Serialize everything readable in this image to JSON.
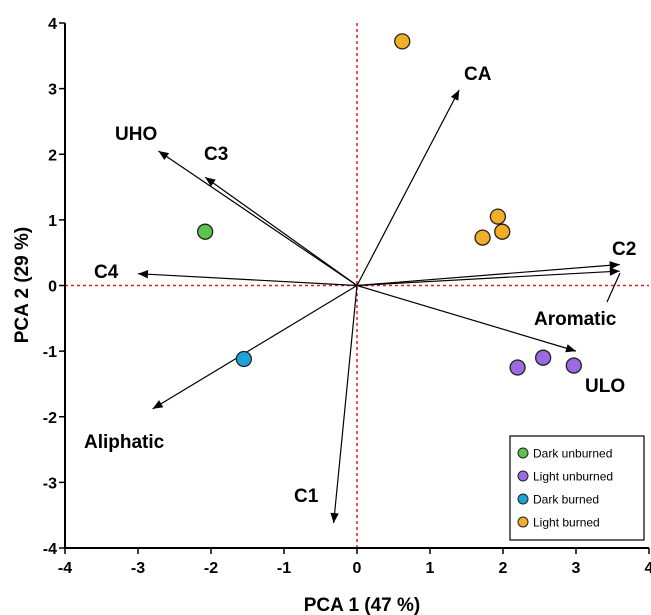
{
  "chart_data": {
    "type": "scatter",
    "xlabel": "PCA 1 (47 %)",
    "ylabel": "PCA 2 (29 %)",
    "xlim": [
      -4,
      4
    ],
    "ylim": [
      -4,
      4
    ],
    "x_ticks": [
      "-4",
      "-3",
      "-2",
      "-1",
      "0",
      "1",
      "2",
      "3",
      "4"
    ],
    "y_ticks": [
      "4",
      "3",
      "2",
      "1",
      "0",
      "-1",
      "-2",
      "-3",
      "-4"
    ],
    "reference_lines": {
      "x": 0,
      "y": 0,
      "color": "#e02020"
    },
    "legend_position": "bottom-right",
    "series": [
      {
        "name": "Dark unburned",
        "color": "#5cc44a",
        "points": [
          {
            "x": -2.08,
            "y": 0.82
          }
        ]
      },
      {
        "name": "Light unburned",
        "color": "#9b6ae0",
        "points": [
          {
            "x": 2.2,
            "y": -1.25
          },
          {
            "x": 2.55,
            "y": -1.1
          },
          {
            "x": 2.97,
            "y": -1.22
          }
        ]
      },
      {
        "name": "Dark burned",
        "color": "#1ea3d8",
        "points": [
          {
            "x": -1.55,
            "y": -1.12
          }
        ]
      },
      {
        "name": "Light burned",
        "color": "#f2ae28",
        "points": [
          {
            "x": 0.62,
            "y": 3.72
          },
          {
            "x": 1.93,
            "y": 1.05
          },
          {
            "x": 1.72,
            "y": 0.73
          },
          {
            "x": 1.99,
            "y": 0.82
          }
        ]
      }
    ],
    "loadings": [
      {
        "label": "CA",
        "x": 1.4,
        "y": 2.98
      },
      {
        "label": "UHO",
        "x": -2.72,
        "y": 2.05
      },
      {
        "label": "C3",
        "x": -2.08,
        "y": 1.65
      },
      {
        "label": "C4",
        "x": -3.0,
        "y": 0.18
      },
      {
        "label": "C2",
        "x": 3.6,
        "y": 0.32
      },
      {
        "label": "Aromatic",
        "x": 3.6,
        "y": 0.22
      },
      {
        "label": "ULO",
        "x": 3.0,
        "y": -1.0
      },
      {
        "label": "Aliphatic",
        "x": -2.8,
        "y": -1.88
      },
      {
        "label": "C1",
        "x": -0.32,
        "y": -3.62
      }
    ]
  }
}
